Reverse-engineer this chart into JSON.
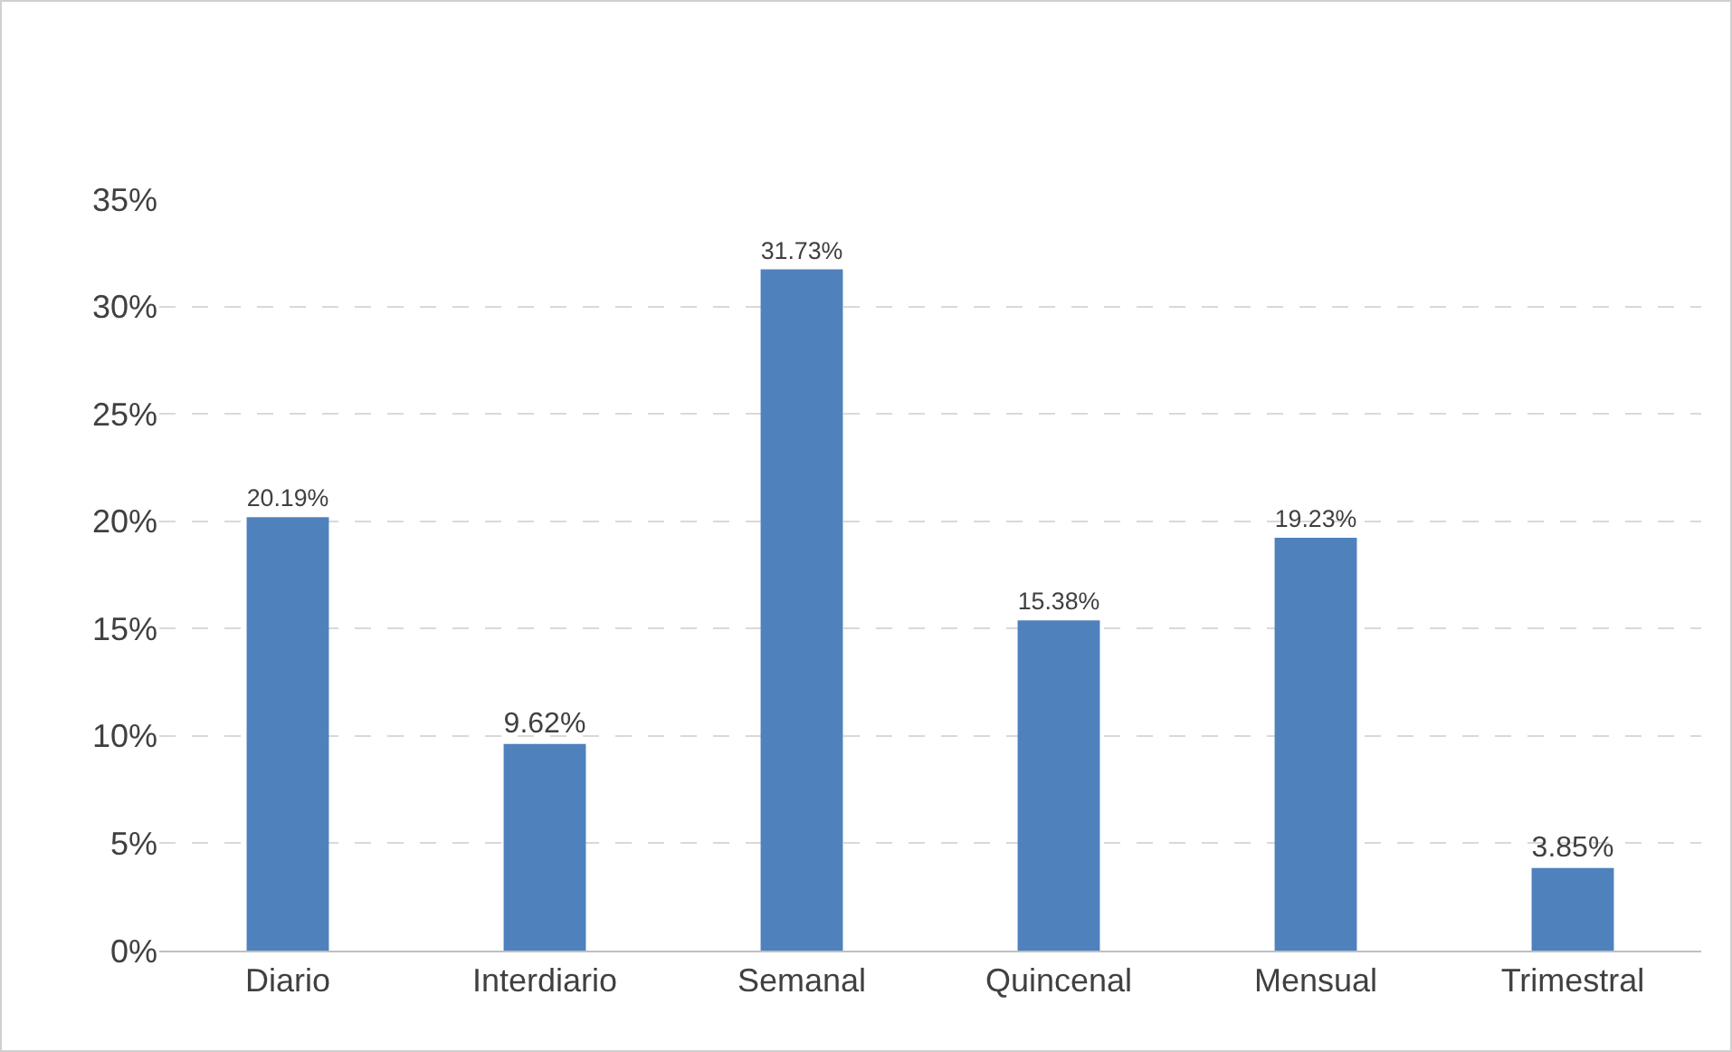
{
  "chart_data": {
    "type": "bar",
    "categories": [
      "Diario",
      "Interdiario",
      "Semanal",
      "Quincenal",
      "Mensual",
      "Trimestral"
    ],
    "values": [
      20.19,
      9.62,
      31.73,
      15.38,
      19.23,
      3.85
    ],
    "value_labels": [
      "20.19%",
      "9.62%",
      "31.73%",
      "15.38%",
      "19.23%",
      "3.85%"
    ],
    "color": "#4f81bd",
    "ylim": [
      0,
      35
    ],
    "yticks": [
      {
        "value": 0,
        "label": "0%"
      },
      {
        "value": 5,
        "label": "5%"
      },
      {
        "value": 10,
        "label": "10%"
      },
      {
        "value": 15,
        "label": "15%"
      },
      {
        "value": 20,
        "label": "20%"
      },
      {
        "value": 25,
        "label": "25%"
      },
      {
        "value": 30,
        "label": "30%"
      },
      {
        "value": 35,
        "label": "35%"
      }
    ],
    "grid": "y",
    "legend": false
  }
}
